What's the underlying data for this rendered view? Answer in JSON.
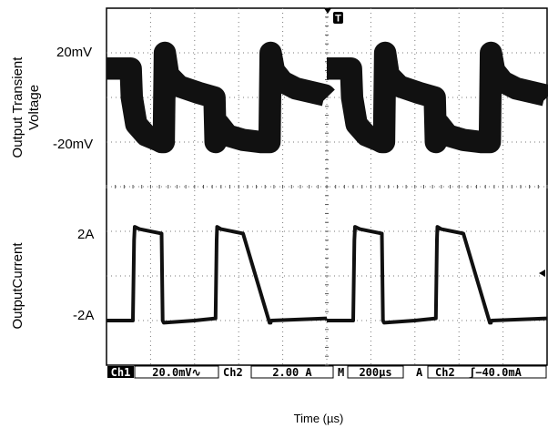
{
  "chart_data": {
    "type": "line",
    "title": "",
    "xlabel": "Time (µs)",
    "x_range": [
      0,
      2000
    ],
    "x_unit": "µs",
    "grid": true,
    "left_labels": {
      "upper_title": [
        "Output Transient",
        "Voltage"
      ],
      "lower_title": "OutputCurrent",
      "upper_ticks": [
        "20mV",
        "-20mV"
      ],
      "lower_ticks": [
        "2A",
        "-2A"
      ]
    },
    "series": [
      {
        "name": "Ch1",
        "unit": "mV",
        "scale_per_div": 20,
        "noise_band_mV": 10,
        "x": [
          0,
          110,
          115,
          135,
          180,
          230,
          250,
          260,
          265,
          280,
          330,
          420,
          490,
          495,
          510,
          550,
          620,
          700,
          740,
          745,
          760,
          800,
          860,
          990,
          1000
        ],
        "y": [
          13,
          13,
          0,
          -12,
          -17,
          -19,
          -20,
          -20,
          20,
          10,
          5,
          2,
          0,
          -20,
          -12,
          -17,
          -19,
          -20,
          -20,
          20,
          12,
          7,
          4,
          1,
          0
        ]
      },
      {
        "name": "Ch2",
        "unit": "A",
        "scale_per_div": 2,
        "x": [
          0,
          120,
          125,
          128,
          150,
          250,
          255,
          260,
          400,
          495,
          500,
          502,
          520,
          620,
          740,
          745,
          748,
          1000
        ],
        "y": [
          -2,
          -2,
          1.6,
          2.2,
          2.1,
          1.9,
          -2,
          -2.1,
          -2,
          -1.9,
          1.6,
          2.2,
          2.1,
          1.9,
          -2.1,
          -2.1,
          -2,
          -1.9
        ]
      }
    ],
    "status_bar": {
      "ch1": "Ch1",
      "ch1_scale": "20.0mV∿",
      "ch2": "Ch2",
      "ch2_scale": "2.00 A",
      "m": "M",
      "timebase": "200µs",
      "a": "A",
      "trigger_source": "Ch2",
      "trigger_level": "ʃ−40.0mA"
    },
    "trigger_marker": "T"
  }
}
